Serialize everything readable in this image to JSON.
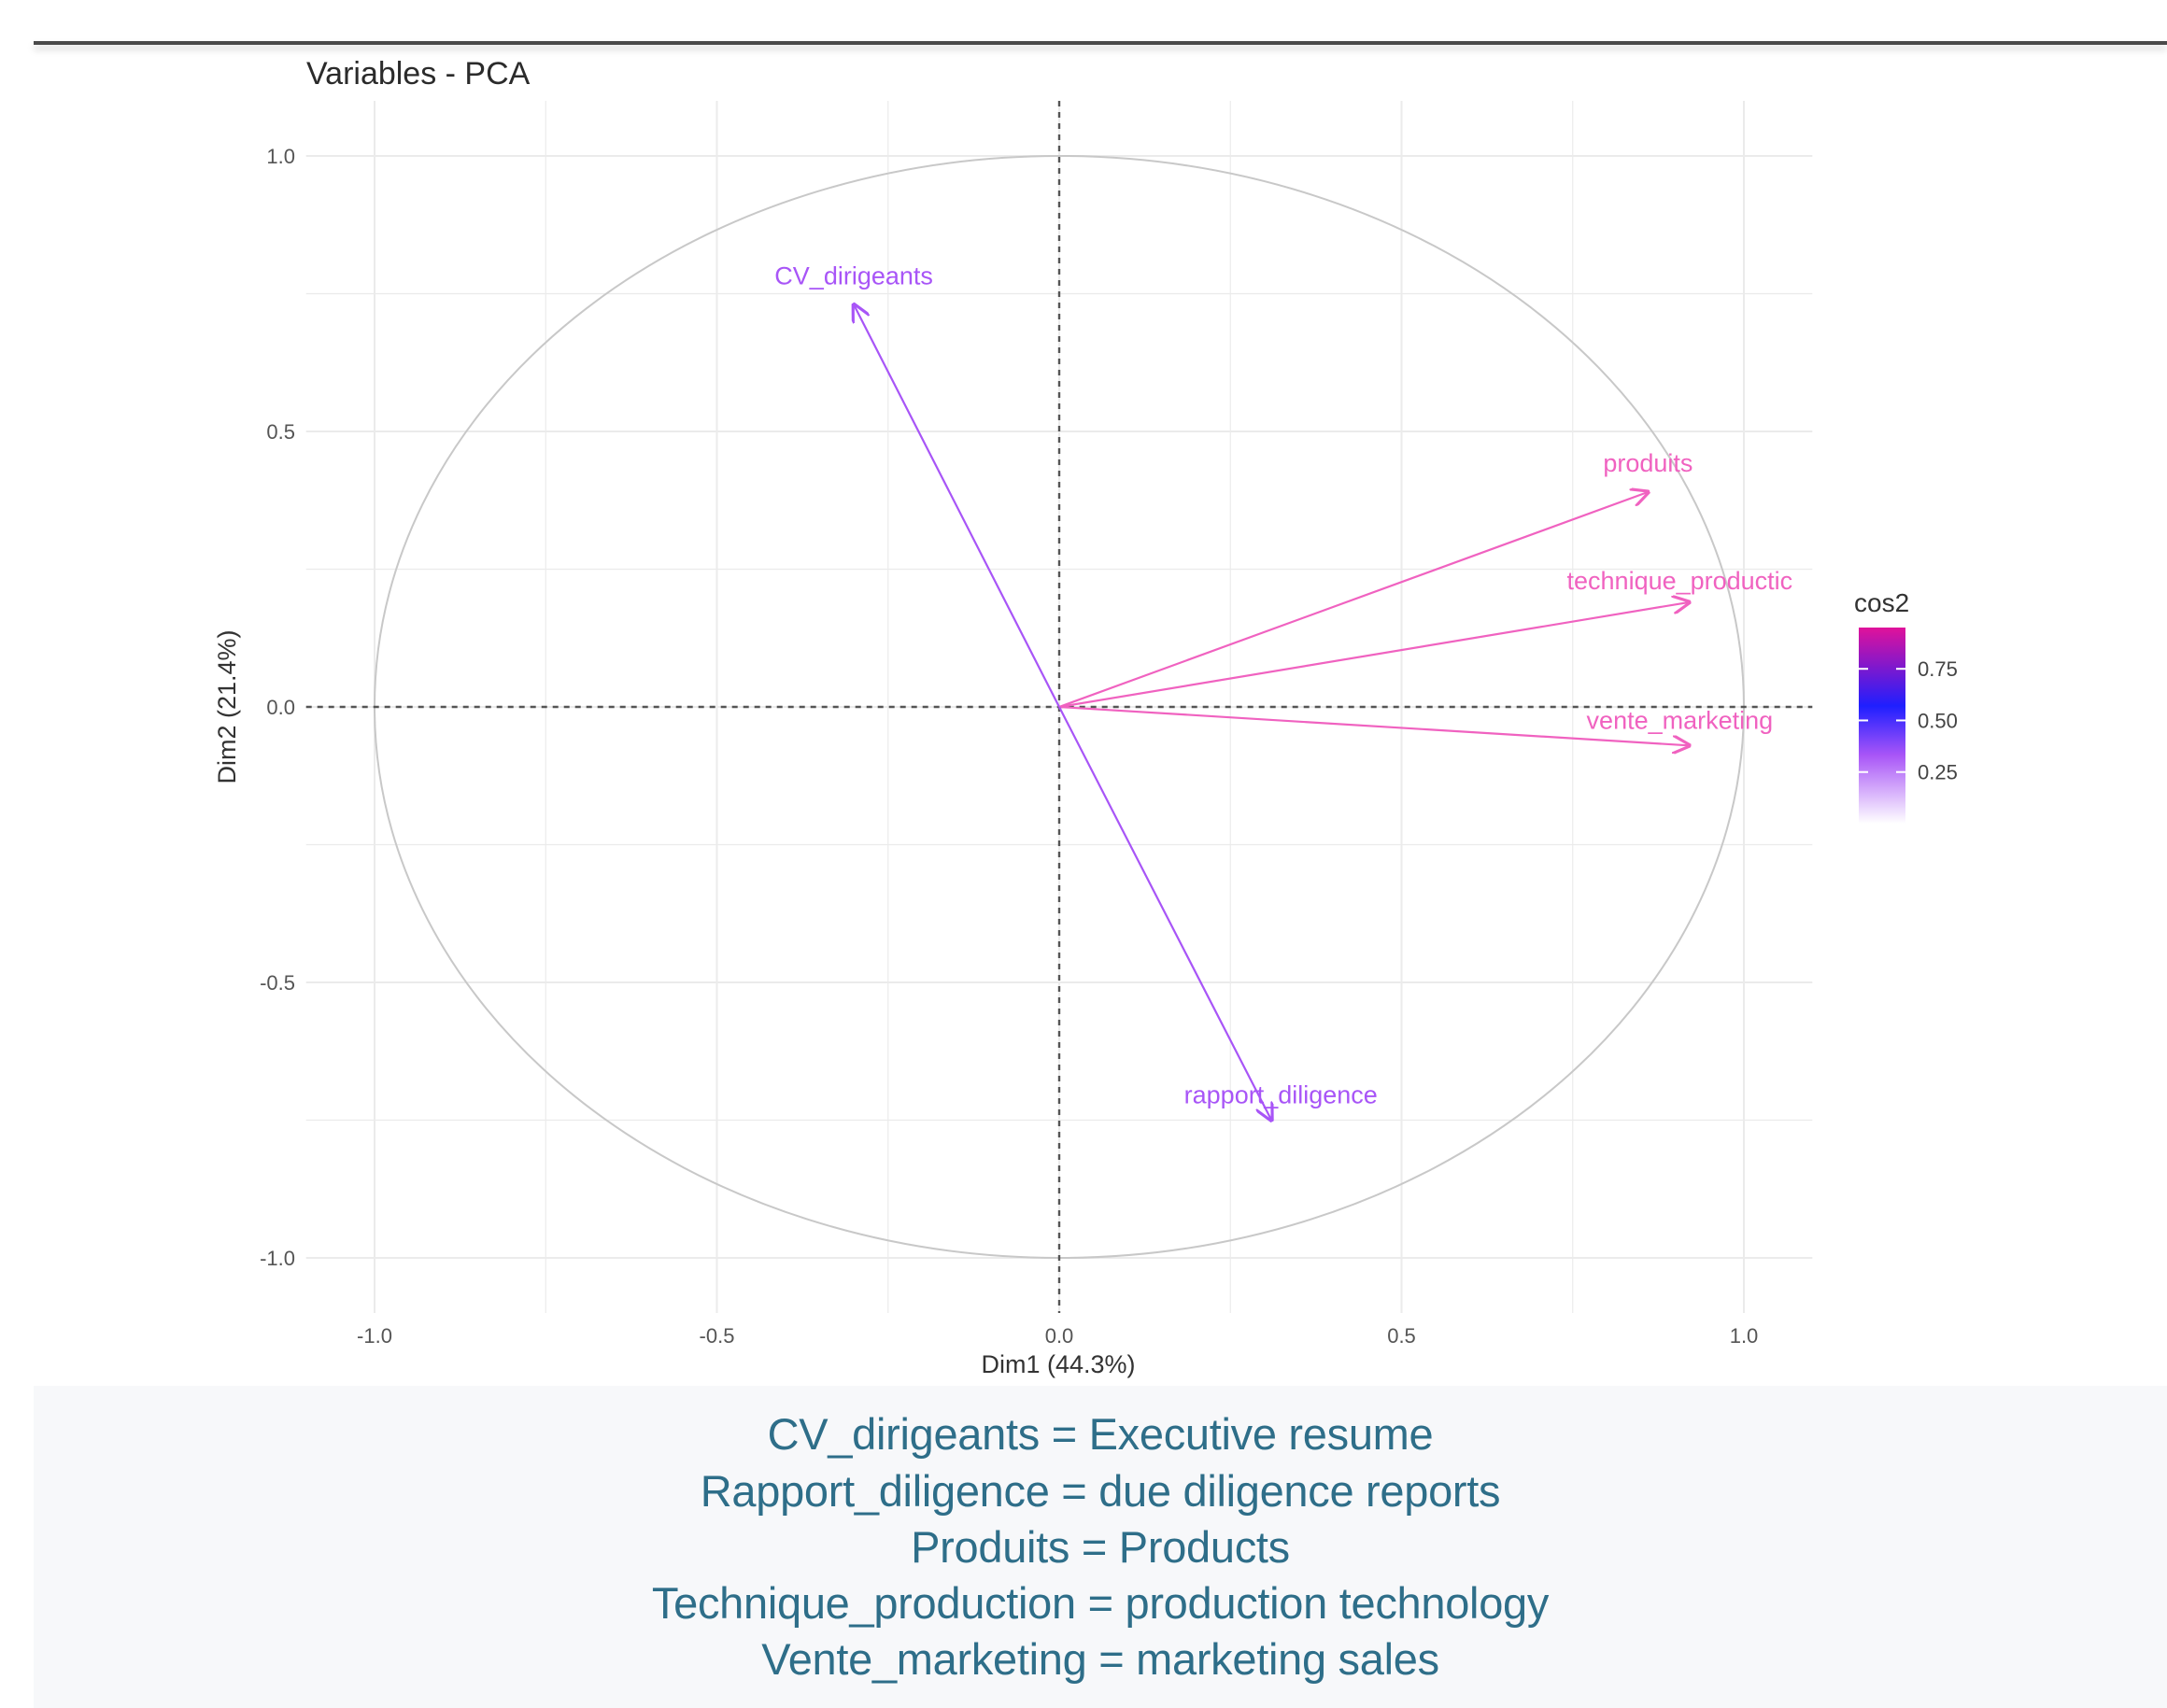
{
  "chart_data": {
    "type": "scatter",
    "subtype": "pca-variable-correlation-circle",
    "title": "Variables - PCA",
    "xlabel": "Dim1 (44.3%)",
    "ylabel": "Dim2 (21.4%)",
    "xlim": [
      -1.1,
      1.1
    ],
    "ylim": [
      -1.1,
      1.1
    ],
    "xticks": [
      -1.0,
      -0.5,
      0.0,
      0.5,
      1.0
    ],
    "yticks": [
      -1.0,
      -0.5,
      0.0,
      0.5,
      1.0
    ],
    "xtick_labels": [
      "-1.0",
      "-0.5",
      "0.0",
      "0.5",
      "1.0"
    ],
    "ytick_labels": [
      "-1.0",
      "-0.5",
      "0.0",
      "0.5",
      "1.0"
    ],
    "grid": true,
    "unit_circle": true,
    "color_scale": {
      "title": "cos2",
      "ticks": [
        "0.75",
        "0.50",
        "0.25"
      ],
      "tick_values": [
        0.75,
        0.5,
        0.25
      ],
      "range": [
        0.0,
        0.95
      ],
      "colors": [
        "#ffffff",
        "#a855f7",
        "#1f1fff",
        "#e0129a"
      ]
    },
    "variables": [
      {
        "name": "CV_dirigeants",
        "x": -0.3,
        "y": 0.73,
        "cos2": 0.62
      },
      {
        "name": "produits",
        "x": 0.86,
        "y": 0.39,
        "cos2": 0.89
      },
      {
        "name": "technique_productic",
        "x": 0.92,
        "y": 0.19,
        "cos2": 0.88
      },
      {
        "name": "vente_marketing",
        "x": 0.92,
        "y": -0.07,
        "cos2": 0.85
      },
      {
        "name": "rapport_diligence",
        "x": 0.31,
        "y": -0.75,
        "cos2": 0.66
      }
    ]
  },
  "legend_lines": [
    "CV_dirigeants = Executive resume",
    "Rapport_diligence = due diligence reports",
    "Produits = Products",
    "Technique_production = production technology",
    "Vente_marketing = marketing sales"
  ]
}
